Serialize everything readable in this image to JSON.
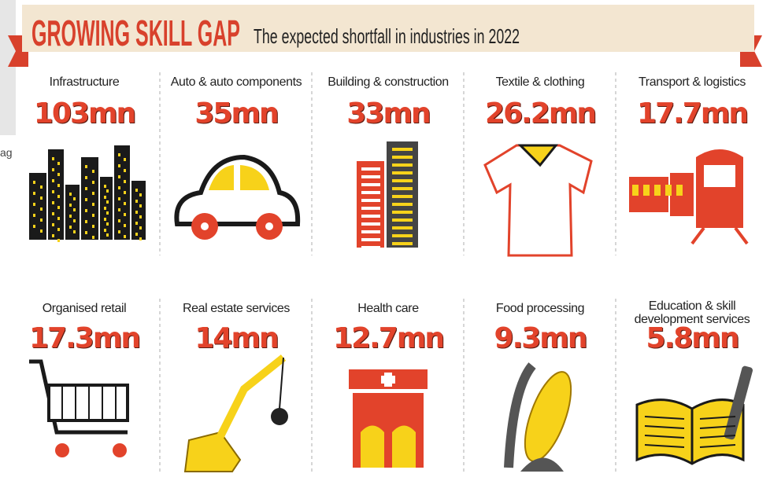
{
  "header": {
    "title": "GROWING SKILL GAP",
    "subtitle": "The expected shortfall in industries in 2022"
  },
  "fragment": "ag",
  "items": [
    {
      "label": "Infrastructure",
      "value": "103mn"
    },
    {
      "label": "Auto & auto components",
      "value": "35mn"
    },
    {
      "label": "Building & construction",
      "value": "33mn"
    },
    {
      "label": "Textile & clothing",
      "value": "26.2mn"
    },
    {
      "label": "Transport & logistics",
      "value": "17.7mn"
    },
    {
      "label": "Organised retail",
      "value": "17.3mn"
    },
    {
      "label": "Real estate services",
      "value": "14mn"
    },
    {
      "label": "Health care",
      "value": "12.7mn"
    },
    {
      "label": "Food processing",
      "value": "9.3mn"
    },
    {
      "label": "Education & skill\ndevelopment services",
      "value": "5.8mn"
    }
  ]
}
